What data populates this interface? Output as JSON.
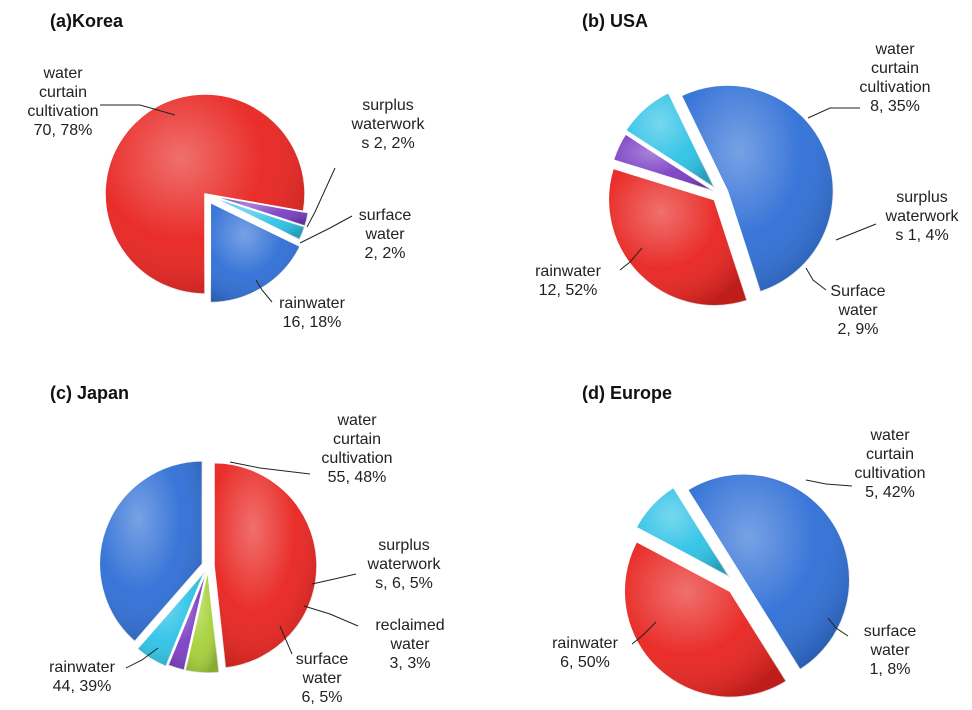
{
  "chart_data": [
    {
      "type": "pie",
      "title": "(a)Korea",
      "slices": [
        {
          "name": "water curtain cultivation",
          "value": 70,
          "percent": "78%",
          "label_lines": [
            "water",
            "curtain",
            "cultivation",
            "70, 78%"
          ],
          "color": "#e8231f"
        },
        {
          "name": "surplus waterworks",
          "value": 2,
          "percent": "2%",
          "label_lines": [
            "surplus",
            "waterwork",
            "s 2, 2%"
          ],
          "color": "#7b3fc4"
        },
        {
          "name": "surface water",
          "value": 2,
          "percent": "2%",
          "label_lines": [
            "surface",
            "water",
            "2, 2%"
          ],
          "color": "#2ec2e6"
        },
        {
          "name": "rainwater",
          "value": 16,
          "percent": "18%",
          "label_lines": [
            "rainwater",
            "16, 18%"
          ],
          "color": "#2f6fd6"
        }
      ]
    },
    {
      "type": "pie",
      "title": "(b) USA",
      "slices": [
        {
          "name": "water curtain cultivation",
          "value": 8,
          "percent": "35%",
          "label_lines": [
            "water",
            "curtain",
            "cultivation",
            "8, 35%"
          ],
          "color": "#e8231f"
        },
        {
          "name": "surplus waterworks",
          "value": 1,
          "percent": "4%",
          "label_lines": [
            "surplus",
            "waterwork",
            "s 1, 4%"
          ],
          "color": "#7b3fc4"
        },
        {
          "name": "Surface water",
          "value": 2,
          "percent": "9%",
          "label_lines": [
            "Surface",
            "water",
            "2, 9%"
          ],
          "color": "#2ec2e6"
        },
        {
          "name": "rainwater",
          "value": 12,
          "percent": "52%",
          "label_lines": [
            "rainwater",
            "12, 52%"
          ],
          "color": "#2f6fd6"
        }
      ]
    },
    {
      "type": "pie",
      "title": "(c) Japan",
      "slices": [
        {
          "name": "water curtain cultivation",
          "value": 55,
          "percent": "48%",
          "label_lines": [
            "water",
            "curtain",
            "cultivation",
            "55, 48%"
          ],
          "color": "#e8231f"
        },
        {
          "name": "surplus waterworks",
          "value": 6,
          "percent": "5%",
          "label_lines": [
            "surplus",
            "waterwork",
            "s, 6, 5%"
          ],
          "color": "#a6d13a"
        },
        {
          "name": "reclaimed water",
          "value": 3,
          "percent": "3%",
          "label_lines": [
            "reclaimed",
            "water",
            "3, 3%"
          ],
          "color": "#7b3fc4"
        },
        {
          "name": "surface water",
          "value": 6,
          "percent": "5%",
          "label_lines": [
            "surface",
            "water",
            "6, 5%"
          ],
          "color": "#2ec2e6"
        },
        {
          "name": "rainwater",
          "value": 44,
          "percent": "39%",
          "label_lines": [
            "rainwater",
            "44, 39%"
          ],
          "color": "#2f6fd6"
        }
      ]
    },
    {
      "type": "pie",
      "title": "(d) Europe",
      "slices": [
        {
          "name": "water curtain cultivation",
          "value": 5,
          "percent": "42%",
          "label_lines": [
            "water",
            "curtain",
            "cultivation",
            "5, 42%"
          ],
          "color": "#e8231f"
        },
        {
          "name": "surface water",
          "value": 1,
          "percent": "8%",
          "label_lines": [
            "surface",
            "water",
            "1, 8%"
          ],
          "color": "#2ec2e6"
        },
        {
          "name": "rainwater",
          "value": 6,
          "percent": "50%",
          "label_lines": [
            "rainwater",
            "6, 50%"
          ],
          "color": "#2f6fd6"
        }
      ]
    }
  ]
}
